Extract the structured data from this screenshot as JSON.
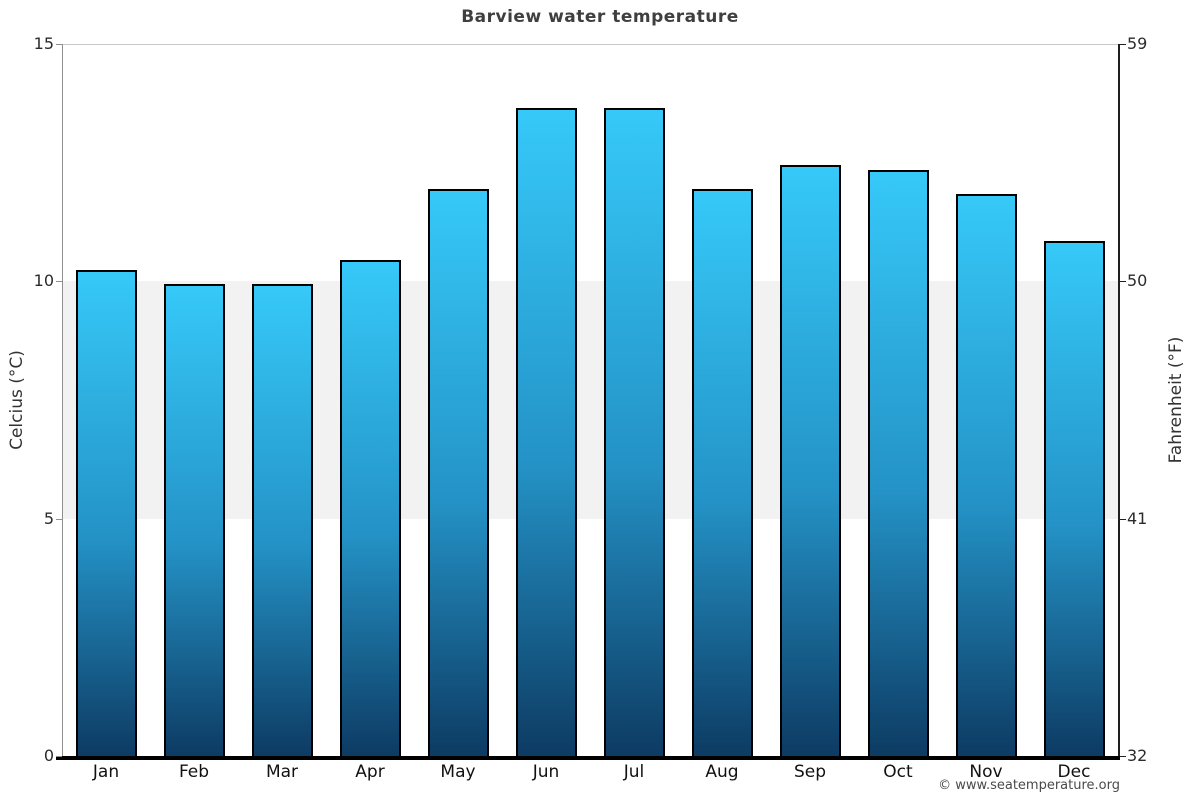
{
  "title": "Barview water temperature",
  "footer_copyright": "© www.seatemperature.org",
  "chart_data": {
    "type": "bar",
    "title": "Barview water temperature",
    "categories": [
      "Jan",
      "Feb",
      "Mar",
      "Apr",
      "May",
      "Jun",
      "Jul",
      "Aug",
      "Sep",
      "Oct",
      "Nov",
      "Dec"
    ],
    "values": [
      10.2,
      9.9,
      9.9,
      10.4,
      11.9,
      13.6,
      13.6,
      11.9,
      12.4,
      12.3,
      11.8,
      10.8
    ],
    "xlabel": "",
    "ylabel_left": "Celcius (°C)",
    "ylabel_right": "Fahrenheit (°F)",
    "ylim_left": [
      0,
      15
    ],
    "yticks_left": [
      0,
      5,
      10,
      15
    ],
    "ylim_right": [
      32,
      59
    ],
    "yticks_right": [
      32,
      41,
      50,
      59
    ],
    "grid": "bands",
    "grid_bands": [
      {
        "from": 5,
        "to": 10,
        "color": "#f2f2f2"
      }
    ],
    "legend": "none",
    "bar_style": {
      "gradient_top": "#36c9f8",
      "gradient_bottom": "#0d3b63",
      "border_color": "#000000",
      "border_width_px": 2
    }
  },
  "colors": {
    "background": "#ffffff",
    "title_text": "#3f3f3f",
    "axis_text": "#2b2b2b",
    "month_text": "#111111",
    "left_axis_line": "#8f8f8f",
    "right_axis_line": "#1f1f1f",
    "top_border": "#c9c9c9",
    "x_axis_line": "#000000",
    "band_fill": "#f2f2f2",
    "footer_text": "#4a4a4a"
  }
}
